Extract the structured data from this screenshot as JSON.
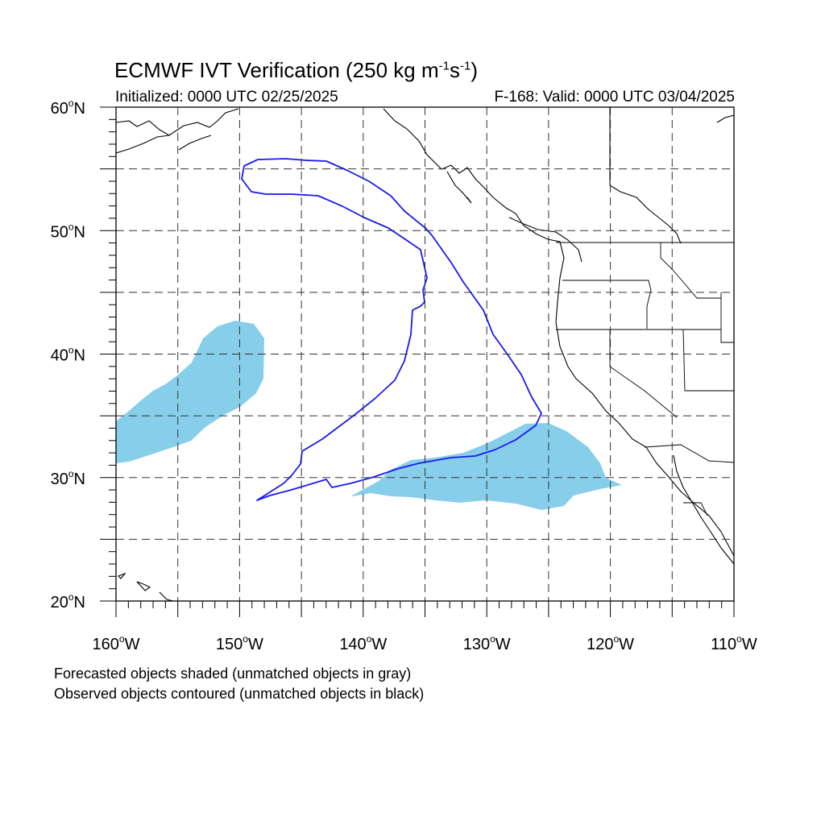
{
  "header": {
    "title_main": "ECMWF IVT Verification (250 kg m",
    "title_sup1": "-1",
    "title_mid": "s",
    "title_sup2": "-1",
    "title_end": ")",
    "initialized": "Initialized: 0000 UTC 02/25/2025",
    "valid": "F-168: Valid: 0000 UTC 03/04/2025"
  },
  "map": {
    "projection": "cylindrical-equidistant",
    "lon_range": [
      -160,
      -110
    ],
    "lat_range": [
      20,
      60
    ],
    "grid_step_deg": 5,
    "grid_style": "dashed",
    "lat_labels": [
      {
        "lat": 60,
        "num": "60",
        "deg": "o",
        "hemi": "N"
      },
      {
        "lat": 50,
        "num": "50",
        "deg": "o",
        "hemi": "N"
      },
      {
        "lat": 40,
        "num": "40",
        "deg": "o",
        "hemi": "N"
      },
      {
        "lat": 30,
        "num": "30",
        "deg": "o",
        "hemi": "N"
      },
      {
        "lat": 20,
        "num": "20",
        "deg": "o",
        "hemi": "N"
      }
    ],
    "lon_labels": [
      {
        "lon": -160,
        "num": "160",
        "deg": "o",
        "hemi": "W"
      },
      {
        "lon": -150,
        "num": "150",
        "deg": "o",
        "hemi": "W"
      },
      {
        "lon": -140,
        "num": "140",
        "deg": "o",
        "hemi": "W"
      },
      {
        "lon": -130,
        "num": "130",
        "deg": "o",
        "hemi": "W"
      },
      {
        "lon": -120,
        "num": "120",
        "deg": "o",
        "hemi": "W"
      },
      {
        "lon": -110,
        "num": "110",
        "deg": "o",
        "hemi": "W"
      }
    ],
    "colors": {
      "forecast_fill": "#87ceeb",
      "observed_contour": "#1a1aee",
      "coastline": "#000000",
      "grid": "#333333"
    }
  },
  "legend": {
    "forecast_note": "Forecasted objects shaded (unmatched objects in gray)",
    "observed_note": "Observed objects contoured (unmatched objects in black)"
  }
}
